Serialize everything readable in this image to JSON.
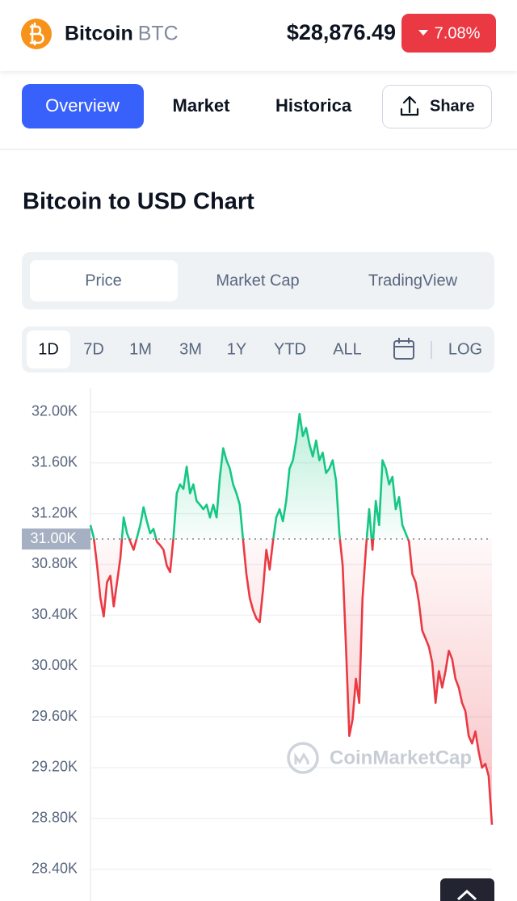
{
  "header": {
    "name": "Bitcoin",
    "symbol": "BTC",
    "price": "$28,876.49",
    "change": "7.08%"
  },
  "tabs": [
    "Overview",
    "Market",
    "Historica"
  ],
  "share": "Share",
  "chart_title": "Bitcoin to USD Chart",
  "chart_tabs": [
    "Price",
    "Market Cap",
    "TradingView"
  ],
  "ranges": [
    "1D",
    "7D",
    "1M",
    "3M",
    "1Y",
    "YTD",
    "ALL"
  ],
  "log": "LOG",
  "watermark": "CoinMarketCap",
  "chart_data": {
    "type": "line",
    "ylim": [
      28150,
      32190
    ],
    "yticks": [
      {
        "value": 28400,
        "label": "28.40K"
      },
      {
        "value": 28800,
        "label": "28.80K"
      },
      {
        "value": 29200,
        "label": "29.20K"
      },
      {
        "value": 29600,
        "label": "29.60K"
      },
      {
        "value": 30000,
        "label": "30.00K"
      },
      {
        "value": 30400,
        "label": "30.40K"
      },
      {
        "value": 30800,
        "label": "30.80K"
      },
      {
        "value": 31200,
        "label": "31.20K"
      },
      {
        "value": 31600,
        "label": "31.60K"
      },
      {
        "value": 32000,
        "label": "32.00K"
      }
    ],
    "reference": {
      "value": 31000,
      "label": "31.00K"
    },
    "grid": true,
    "up_color": "#16c784",
    "down_color": "#ea3943",
    "series": [
      {
        "values": [
          31110,
          31010,
          30790,
          30535,
          30390,
          30660,
          30710,
          30470,
          30660,
          30850,
          31170,
          31045,
          30980,
          30915,
          31010,
          31110,
          31250,
          31140,
          31045,
          31080,
          30980,
          30950,
          30915,
          30790,
          30740,
          31010,
          31360,
          31430,
          31395,
          31570,
          31360,
          31430,
          31300,
          31270,
          31235,
          31270,
          31170,
          31270,
          31170,
          31490,
          31715,
          31620,
          31555,
          31430,
          31360,
          31270,
          30995,
          30725,
          30535,
          30440,
          30375,
          30345,
          30600,
          30915,
          30760,
          30980,
          31170,
          31235,
          31140,
          31300,
          31555,
          31620,
          31775,
          31985,
          31810,
          31875,
          31745,
          31650,
          31775,
          31620,
          31680,
          31520,
          31555,
          31620,
          31460,
          31045,
          30790,
          30150,
          29450,
          29580,
          29900,
          29710,
          30535,
          30915,
          31235,
          30915,
          31300,
          31110,
          31620,
          31555,
          31430,
          31490,
          31235,
          31330,
          31110,
          31045,
          30980,
          30725,
          30660,
          30500,
          30280,
          30215,
          30150,
          30025,
          29710,
          29960,
          29830,
          29960,
          30120,
          30055,
          29900,
          29830,
          29710,
          29645,
          29450,
          29390,
          29485,
          29325,
          29200,
          29230,
          29135,
          28750
        ]
      }
    ]
  }
}
